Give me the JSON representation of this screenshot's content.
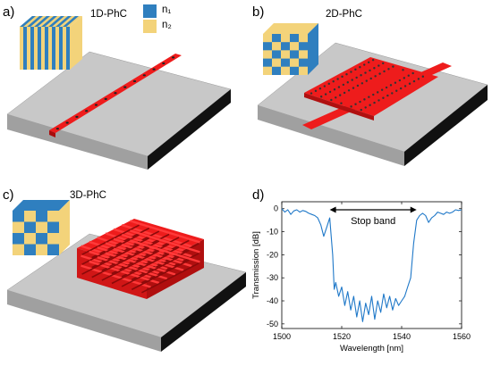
{
  "panels": [
    {
      "letter": "a)",
      "title": "1D-PhC"
    },
    {
      "letter": "b)",
      "title": "2D-PhC"
    },
    {
      "letter": "c)",
      "title": "3D-PhC"
    },
    {
      "letter": "d)",
      "title": ""
    }
  ],
  "legend": [
    {
      "label": "n₁",
      "color": "#2f7fbf"
    },
    {
      "label": "n₂",
      "color": "#f3d37a"
    }
  ],
  "colors": {
    "waveguide_red": "#ee1c1c",
    "slab_top": "#c8c8c8",
    "slab_front": "#9a9a9a",
    "slab_side": "#111111",
    "n1_blue": "#2f7fbf",
    "n2_yellow": "#f3d37a",
    "trace_blue": "#1f78c8"
  },
  "chart_data": {
    "type": "line",
    "xlabel": "Wavelength [nm]",
    "ylabel": "Transmission [dB]",
    "xlim": [
      1500,
      1560
    ],
    "ylim": [
      -52,
      3
    ],
    "xticks": [
      1500,
      1520,
      1540,
      1560
    ],
    "yticks": [
      0,
      -10,
      -20,
      -30,
      -40,
      -50
    ],
    "annotation": "Stop band",
    "stopband_range": [
      1516,
      1545
    ],
    "series": [
      {
        "color": "#1f78c8",
        "x": [
          1500,
          1501,
          1502,
          1503,
          1504,
          1505,
          1506,
          1507,
          1508,
          1509,
          1510,
          1511,
          1512,
          1513,
          1514,
          1515,
          1516,
          1517,
          1517.5,
          1518,
          1519,
          1520,
          1521,
          1522,
          1523,
          1524,
          1525,
          1526,
          1527,
          1528,
          1529,
          1530,
          1531,
          1532,
          1533,
          1534,
          1535,
          1536,
          1537,
          1538,
          1539,
          1540,
          1541,
          1542,
          1543,
          1544,
          1545,
          1546,
          1547,
          1548,
          1549,
          1550,
          1551,
          1552,
          1553,
          1554,
          1555,
          1556,
          1557,
          1558,
          1559,
          1560
        ],
        "y": [
          0,
          -1.5,
          -0.5,
          -2.5,
          -1,
          -0.5,
          -1.5,
          -0.8,
          -1.2,
          -2,
          -2.5,
          -3,
          -4,
          -7,
          -12,
          -8,
          -4,
          -20,
          -35,
          -32,
          -38,
          -34,
          -42,
          -36,
          -44,
          -38,
          -47,
          -40,
          -49,
          -41,
          -46,
          -38,
          -48,
          -40,
          -45,
          -37,
          -43,
          -38,
          -44,
          -39,
          -42,
          -40,
          -38,
          -34,
          -30,
          -15,
          -5,
          -3,
          -2,
          -3,
          -6,
          -4,
          -3,
          -1.5,
          -2,
          -2.5,
          -1.5,
          -2,
          -1.5,
          -0.5,
          -0.8,
          -0.5
        ]
      }
    ]
  }
}
